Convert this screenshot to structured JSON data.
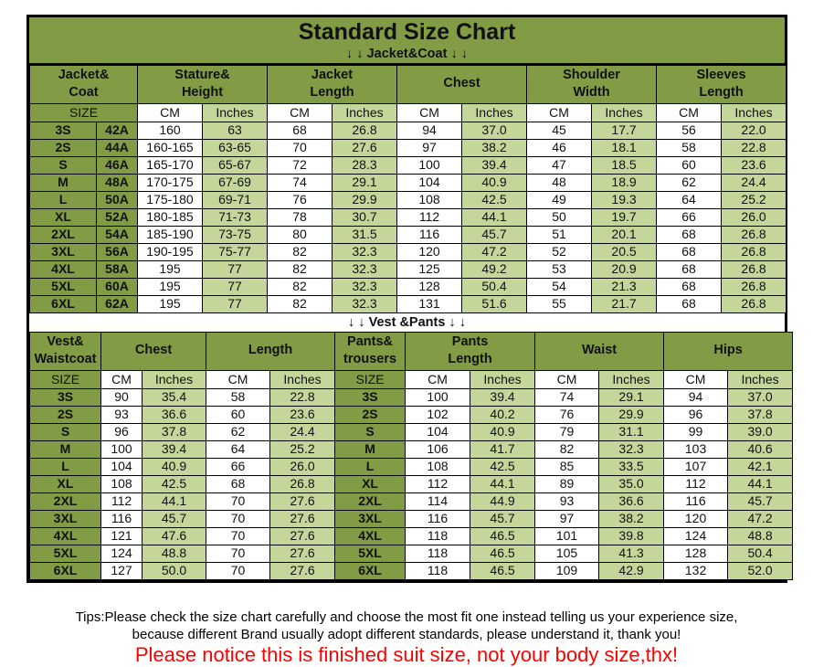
{
  "page": {
    "title": "Standard Size Chart",
    "jacket_section_label": "↓ ↓  Jacket&Coat ↓ ↓",
    "vest_section_label": "↓ ↓  Vest &Pants ↓ ↓",
    "tips_line1": "Tips:Please check the size chart carefully and choose the most fit one instead telling us your experience size,",
    "tips_line2": "because different Brand usually adopt different standards, please understand it, thank you!",
    "notice": "Please notice this is finished suit size, not your body size,thx!"
  },
  "colors": {
    "header_green": "#829C46",
    "light_green": "#C5D69B",
    "cell_white": "#FFFFFF",
    "border_black": "#000000",
    "notice_red": "#FE0000"
  },
  "chart_data": [
    {
      "type": "table",
      "title": "Jacket&Coat",
      "groups": [
        {
          "label": "Jacket&\nCoat",
          "span": 2
        },
        {
          "label": "Stature&\nHeight",
          "span": 2
        },
        {
          "label": "Jacket\nLength",
          "span": 2
        },
        {
          "label": "Chest",
          "span": 2
        },
        {
          "label": "Shoulder\nWidth",
          "span": 2
        },
        {
          "label": "Sleeves\nLength",
          "span": 2
        }
      ],
      "units": [
        {
          "label": "SIZE",
          "type": "size",
          "span": 2
        },
        {
          "label": "CM",
          "type": "cm"
        },
        {
          "label": "Inches",
          "type": "in"
        },
        {
          "label": "CM",
          "type": "cm"
        },
        {
          "label": "Inches",
          "type": "in"
        },
        {
          "label": "CM",
          "type": "cm"
        },
        {
          "label": "Inches",
          "type": "in"
        },
        {
          "label": "CM",
          "type": "cm"
        },
        {
          "label": "Inches",
          "type": "in"
        },
        {
          "label": "CM",
          "type": "cm"
        },
        {
          "label": "Inches",
          "type": "in"
        }
      ],
      "col_types": [
        "size",
        "size",
        "cm",
        "in",
        "cm",
        "in",
        "cm",
        "in",
        "cm",
        "in",
        "cm",
        "in"
      ],
      "rows": [
        [
          "3S",
          "42A",
          "160",
          "63",
          "68",
          "26.8",
          "94",
          "37.0",
          "45",
          "17.7",
          "56",
          "22.0"
        ],
        [
          "2S",
          "44A",
          "160-165",
          "63-65",
          "70",
          "27.6",
          "97",
          "38.2",
          "46",
          "18.1",
          "58",
          "22.8"
        ],
        [
          "S",
          "46A",
          "165-170",
          "65-67",
          "72",
          "28.3",
          "100",
          "39.4",
          "47",
          "18.5",
          "60",
          "23.6"
        ],
        [
          "M",
          "48A",
          "170-175",
          "67-69",
          "74",
          "29.1",
          "104",
          "40.9",
          "48",
          "18.9",
          "62",
          "24.4"
        ],
        [
          "L",
          "50A",
          "175-180",
          "69-71",
          "76",
          "29.9",
          "108",
          "42.5",
          "49",
          "19.3",
          "64",
          "25.2"
        ],
        [
          "XL",
          "52A",
          "180-185",
          "71-73",
          "78",
          "30.7",
          "112",
          "44.1",
          "50",
          "19.7",
          "66",
          "26.0"
        ],
        [
          "2XL",
          "54A",
          "185-190",
          "73-75",
          "80",
          "31.5",
          "116",
          "45.7",
          "51",
          "20.1",
          "68",
          "26.8"
        ],
        [
          "3XL",
          "56A",
          "190-195",
          "75-77",
          "82",
          "32.3",
          "120",
          "47.2",
          "52",
          "20.5",
          "68",
          "26.8"
        ],
        [
          "4XL",
          "58A",
          "195",
          "77",
          "82",
          "32.3",
          "125",
          "49.2",
          "53",
          "20.9",
          "68",
          "26.8"
        ],
        [
          "5XL",
          "60A",
          "195",
          "77",
          "82",
          "32.3",
          "128",
          "50.4",
          "54",
          "21.3",
          "68",
          "26.8"
        ],
        [
          "6XL",
          "62A",
          "195",
          "77",
          "82",
          "32.3",
          "131",
          "51.6",
          "55",
          "21.7",
          "68",
          "26.8"
        ]
      ]
    },
    {
      "type": "table",
      "title": "Vest &Pants",
      "groups": [
        {
          "label": "Vest&\nWaistcoat",
          "span": 1
        },
        {
          "label": "Chest",
          "span": 2
        },
        {
          "label": "Length",
          "span": 2
        },
        {
          "label": "Pants&\ntrousers",
          "span": 1
        },
        {
          "label": "Pants\nLength",
          "span": 2
        },
        {
          "label": "Waist",
          "span": 2
        },
        {
          "label": "Hips",
          "span": 2
        }
      ],
      "units": [
        {
          "label": "SIZE",
          "type": "size"
        },
        {
          "label": "CM",
          "type": "cm"
        },
        {
          "label": "Inches",
          "type": "in"
        },
        {
          "label": "CM",
          "type": "cm"
        },
        {
          "label": "Inches",
          "type": "in"
        },
        {
          "label": "SIZE",
          "type": "size"
        },
        {
          "label": "CM",
          "type": "cm"
        },
        {
          "label": "Inches",
          "type": "in"
        },
        {
          "label": "CM",
          "type": "cm"
        },
        {
          "label": "Inches",
          "type": "in"
        },
        {
          "label": "CM",
          "type": "cm"
        },
        {
          "label": "Inches",
          "type": "in"
        }
      ],
      "col_types": [
        "size",
        "cm",
        "in",
        "cm",
        "in",
        "size",
        "cm",
        "in",
        "cm",
        "in",
        "cm",
        "in"
      ],
      "rows": [
        [
          "3S",
          "90",
          "35.4",
          "58",
          "22.8",
          "3S",
          "100",
          "39.4",
          "74",
          "29.1",
          "94",
          "37.0"
        ],
        [
          "2S",
          "93",
          "36.6",
          "60",
          "23.6",
          "2S",
          "102",
          "40.2",
          "76",
          "29.9",
          "96",
          "37.8"
        ],
        [
          "S",
          "96",
          "37.8",
          "62",
          "24.4",
          "S",
          "104",
          "40.9",
          "79",
          "31.1",
          "99",
          "39.0"
        ],
        [
          "M",
          "100",
          "39.4",
          "64",
          "25.2",
          "M",
          "106",
          "41.7",
          "82",
          "32.3",
          "103",
          "40.6"
        ],
        [
          "L",
          "104",
          "40.9",
          "66",
          "26.0",
          "L",
          "108",
          "42.5",
          "85",
          "33.5",
          "107",
          "42.1"
        ],
        [
          "XL",
          "108",
          "42.5",
          "68",
          "26.8",
          "XL",
          "112",
          "44.1",
          "89",
          "35.0",
          "112",
          "44.1"
        ],
        [
          "2XL",
          "112",
          "44.1",
          "70",
          "27.6",
          "2XL",
          "114",
          "44.9",
          "93",
          "36.6",
          "116",
          "45.7"
        ],
        [
          "3XL",
          "116",
          "45.7",
          "70",
          "27.6",
          "3XL",
          "116",
          "45.7",
          "97",
          "38.2",
          "120",
          "47.2"
        ],
        [
          "4XL",
          "121",
          "47.6",
          "70",
          "27.6",
          "4XL",
          "118",
          "46.5",
          "101",
          "39.8",
          "124",
          "48.8"
        ],
        [
          "5XL",
          "124",
          "48.8",
          "70",
          "27.6",
          "5XL",
          "118",
          "46.5",
          "105",
          "41.3",
          "128",
          "50.4"
        ],
        [
          "6XL",
          "127",
          "50.0",
          "70",
          "27.6",
          "6XL",
          "118",
          "46.5",
          "109",
          "42.9",
          "132",
          "52.0"
        ]
      ]
    }
  ]
}
